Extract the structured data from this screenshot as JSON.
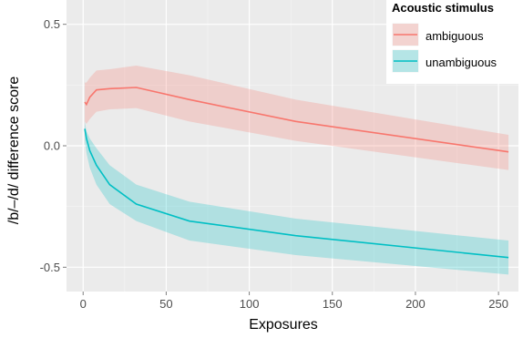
{
  "chart_data": {
    "type": "line",
    "xlabel": "Exposures",
    "ylabel": "/b/–/d/ difference score",
    "xlim": [
      -10,
      262
    ],
    "ylim": [
      -0.6,
      0.6
    ],
    "x_ticks": [
      0,
      50,
      100,
      150,
      200,
      250
    ],
    "x_tick_labels": [
      "0",
      "50",
      "100",
      "150",
      "200",
      "250"
    ],
    "y_ticks": [
      -0.5,
      0.0,
      0.5
    ],
    "y_tick_labels": [
      "-0.5",
      "0.0",
      "0.5"
    ],
    "grid": true,
    "legend": {
      "title": "Acoustic stimulus",
      "placement": "top-right",
      "entries": [
        "ambiguous",
        "unambiguous"
      ]
    },
    "series": [
      {
        "name": "ambiguous",
        "color": "#F8766D",
        "band_color": "#F8766D",
        "x": [
          1,
          2,
          4,
          8,
          16,
          32,
          64,
          128,
          256
        ],
        "y": [
          0.18,
          0.17,
          0.2,
          0.23,
          0.235,
          0.24,
          0.19,
          0.1,
          -0.025
        ],
        "lower": [
          0.1,
          0.09,
          0.11,
          0.14,
          0.15,
          0.155,
          0.1,
          0.02,
          -0.1
        ],
        "upper": [
          0.26,
          0.26,
          0.28,
          0.31,
          0.315,
          0.33,
          0.29,
          0.19,
          0.045
        ]
      },
      {
        "name": "unambiguous",
        "color": "#00BFC4",
        "band_color": "#00BFC4",
        "x": [
          1,
          2,
          4,
          8,
          16,
          32,
          64,
          128,
          256
        ],
        "y": [
          0.07,
          0.03,
          -0.02,
          -0.08,
          -0.16,
          -0.24,
          -0.31,
          -0.37,
          -0.46
        ],
        "lower": [
          0.02,
          -0.03,
          -0.09,
          -0.16,
          -0.24,
          -0.31,
          -0.39,
          -0.45,
          -0.53
        ],
        "upper": [
          0.1,
          0.06,
          0.03,
          -0.01,
          -0.08,
          -0.16,
          -0.23,
          -0.3,
          -0.39
        ]
      }
    ]
  }
}
